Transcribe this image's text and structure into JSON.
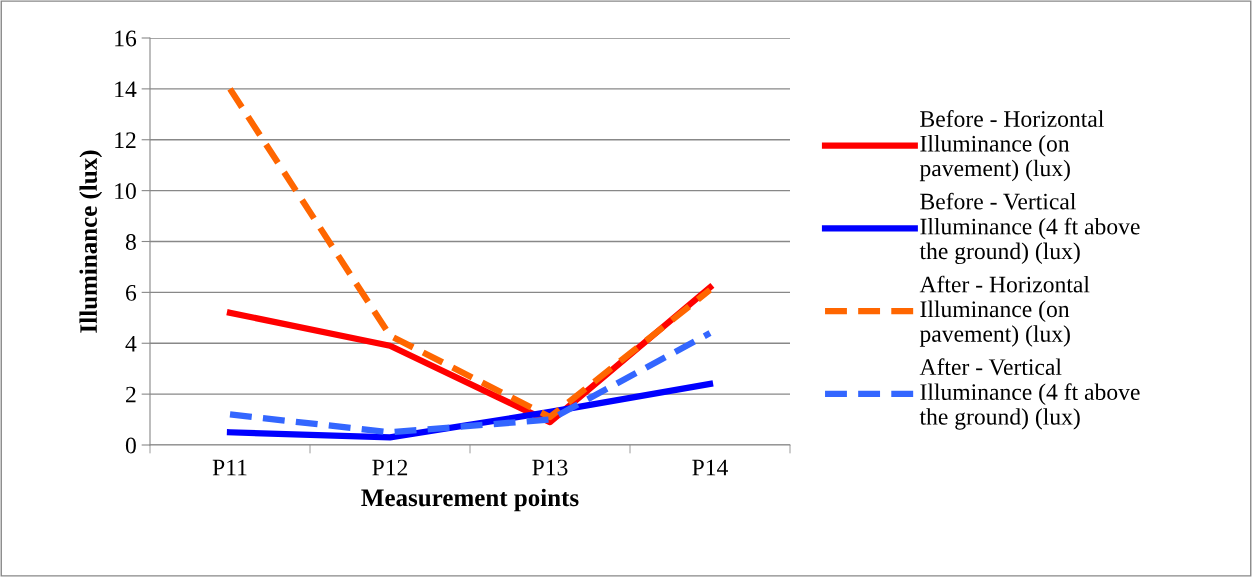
{
  "chart_data": {
    "type": "line",
    "xlabel": "Measurement points",
    "ylabel": "Illuminance (lux)",
    "categories": [
      "P11",
      "P12",
      "P13",
      "P14"
    ],
    "series": [
      {
        "name": "Before - Horizontal\nIlluminance (on\npavement) (lux)",
        "color": "#ff0000",
        "line_style": "solid",
        "values": [
          5.2,
          3.9,
          0.9,
          6.2
        ]
      },
      {
        "name": "Before - Vertical\nIlluminance (4 ft above\nthe ground) (lux)",
        "color": "#0000ff",
        "line_style": "solid",
        "values": [
          0.5,
          0.3,
          1.3,
          2.4
        ]
      },
      {
        "name": "After - Horizontal\nIlluminance (on\npavement) (lux)",
        "color": "#ff6600",
        "line_style": "dashed",
        "values": [
          14.0,
          4.3,
          1.1,
          6.1
        ]
      },
      {
        "name": "After - Vertical\nIlluminance (4 ft above\nthe ground) (lux)",
        "color": "#3366ff",
        "line_style": "dashed",
        "values": [
          1.2,
          0.5,
          1.0,
          4.4
        ]
      }
    ],
    "ylim": [
      0,
      16
    ],
    "yticks": [
      0,
      2,
      4,
      6,
      8,
      10,
      12,
      14,
      16
    ],
    "grid": "y",
    "legend": "right",
    "marker": "none"
  }
}
